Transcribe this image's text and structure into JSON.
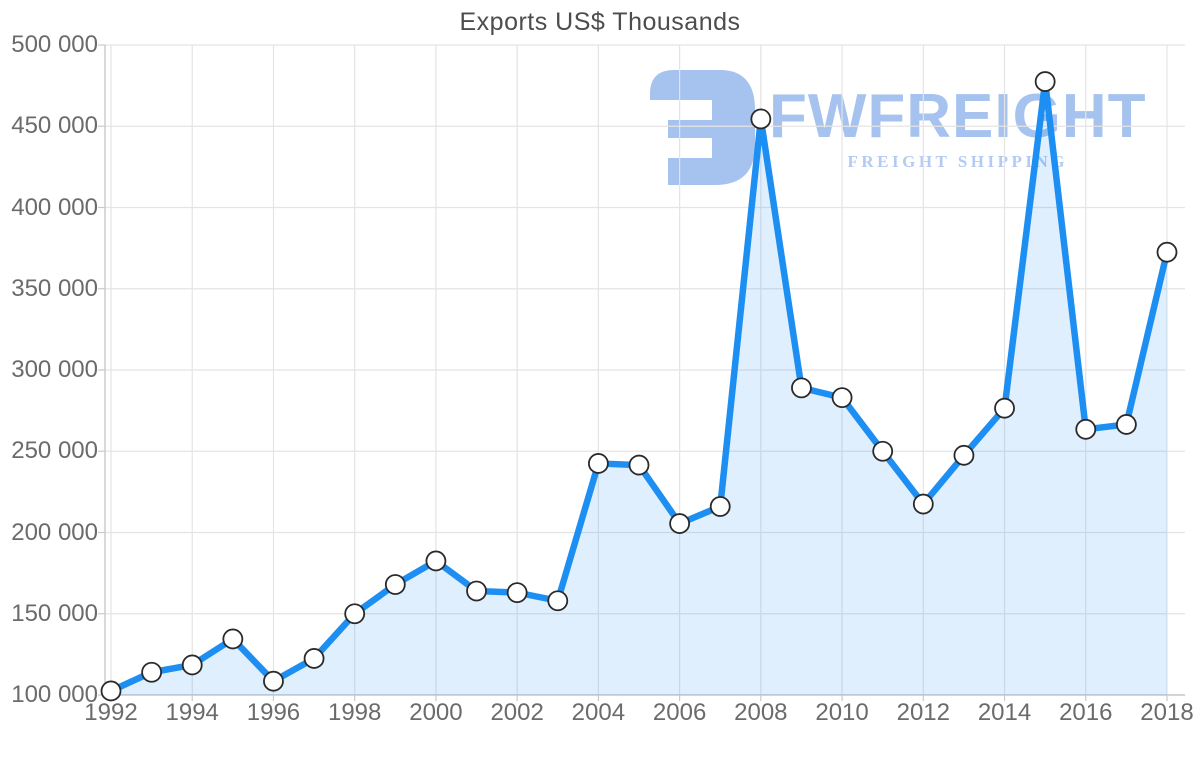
{
  "title": "Exports US$ Thousands",
  "watermark": {
    "brand": "FWFREIGHT",
    "tagline": "FREIGHT SHIPPING"
  },
  "colors": {
    "line": "#1e8ff2",
    "area_fill": "rgba(30,143,242,0.14)",
    "marker_fill": "#ffffff",
    "marker_stroke": "#2a2a2a",
    "grid": "#e4e4e4",
    "axis": "#c9c9c9",
    "axis_text": "#6b6b6b",
    "title_text": "#4d4d4d",
    "watermark_color": "#a6c2ee"
  },
  "chart_data": {
    "type": "area",
    "title": "Exports US$ Thousands",
    "xlabel": "",
    "ylabel": "",
    "x": [
      1992,
      1993,
      1994,
      1995,
      1996,
      1997,
      1998,
      1999,
      2000,
      2001,
      2002,
      2003,
      2004,
      2005,
      2006,
      2007,
      2008,
      2009,
      2010,
      2011,
      2012,
      2013,
      2014,
      2015,
      2016,
      2017,
      2018
    ],
    "values": [
      102500,
      114000,
      118500,
      134500,
      108500,
      122500,
      150000,
      168000,
      182500,
      164000,
      163000,
      158000,
      242500,
      241500,
      205500,
      216000,
      454500,
      289000,
      283000,
      250000,
      217500,
      247500,
      276500,
      477500,
      263500,
      266500,
      372500
    ],
    "ylim": [
      100000,
      500000
    ],
    "y_ticks": [
      100000,
      150000,
      200000,
      250000,
      300000,
      350000,
      400000,
      450000,
      500000
    ],
    "y_tick_labels": [
      "100 000",
      "150 000",
      "200 000",
      "250 000",
      "300 000",
      "350 000",
      "400 000",
      "450 000",
      "500 000"
    ],
    "x_tick_years": [
      1992,
      1994,
      1996,
      1998,
      2000,
      2002,
      2004,
      2006,
      2008,
      2010,
      2012,
      2014,
      2016,
      2018
    ],
    "x_tick_labels": [
      "1992",
      "1994",
      "1996",
      "1998",
      "2000",
      "2002",
      "2004",
      "2006",
      "2008",
      "2010",
      "2012",
      "2014",
      "2016",
      "2018"
    ],
    "grid": true,
    "legend": false,
    "marker": "circle"
  }
}
